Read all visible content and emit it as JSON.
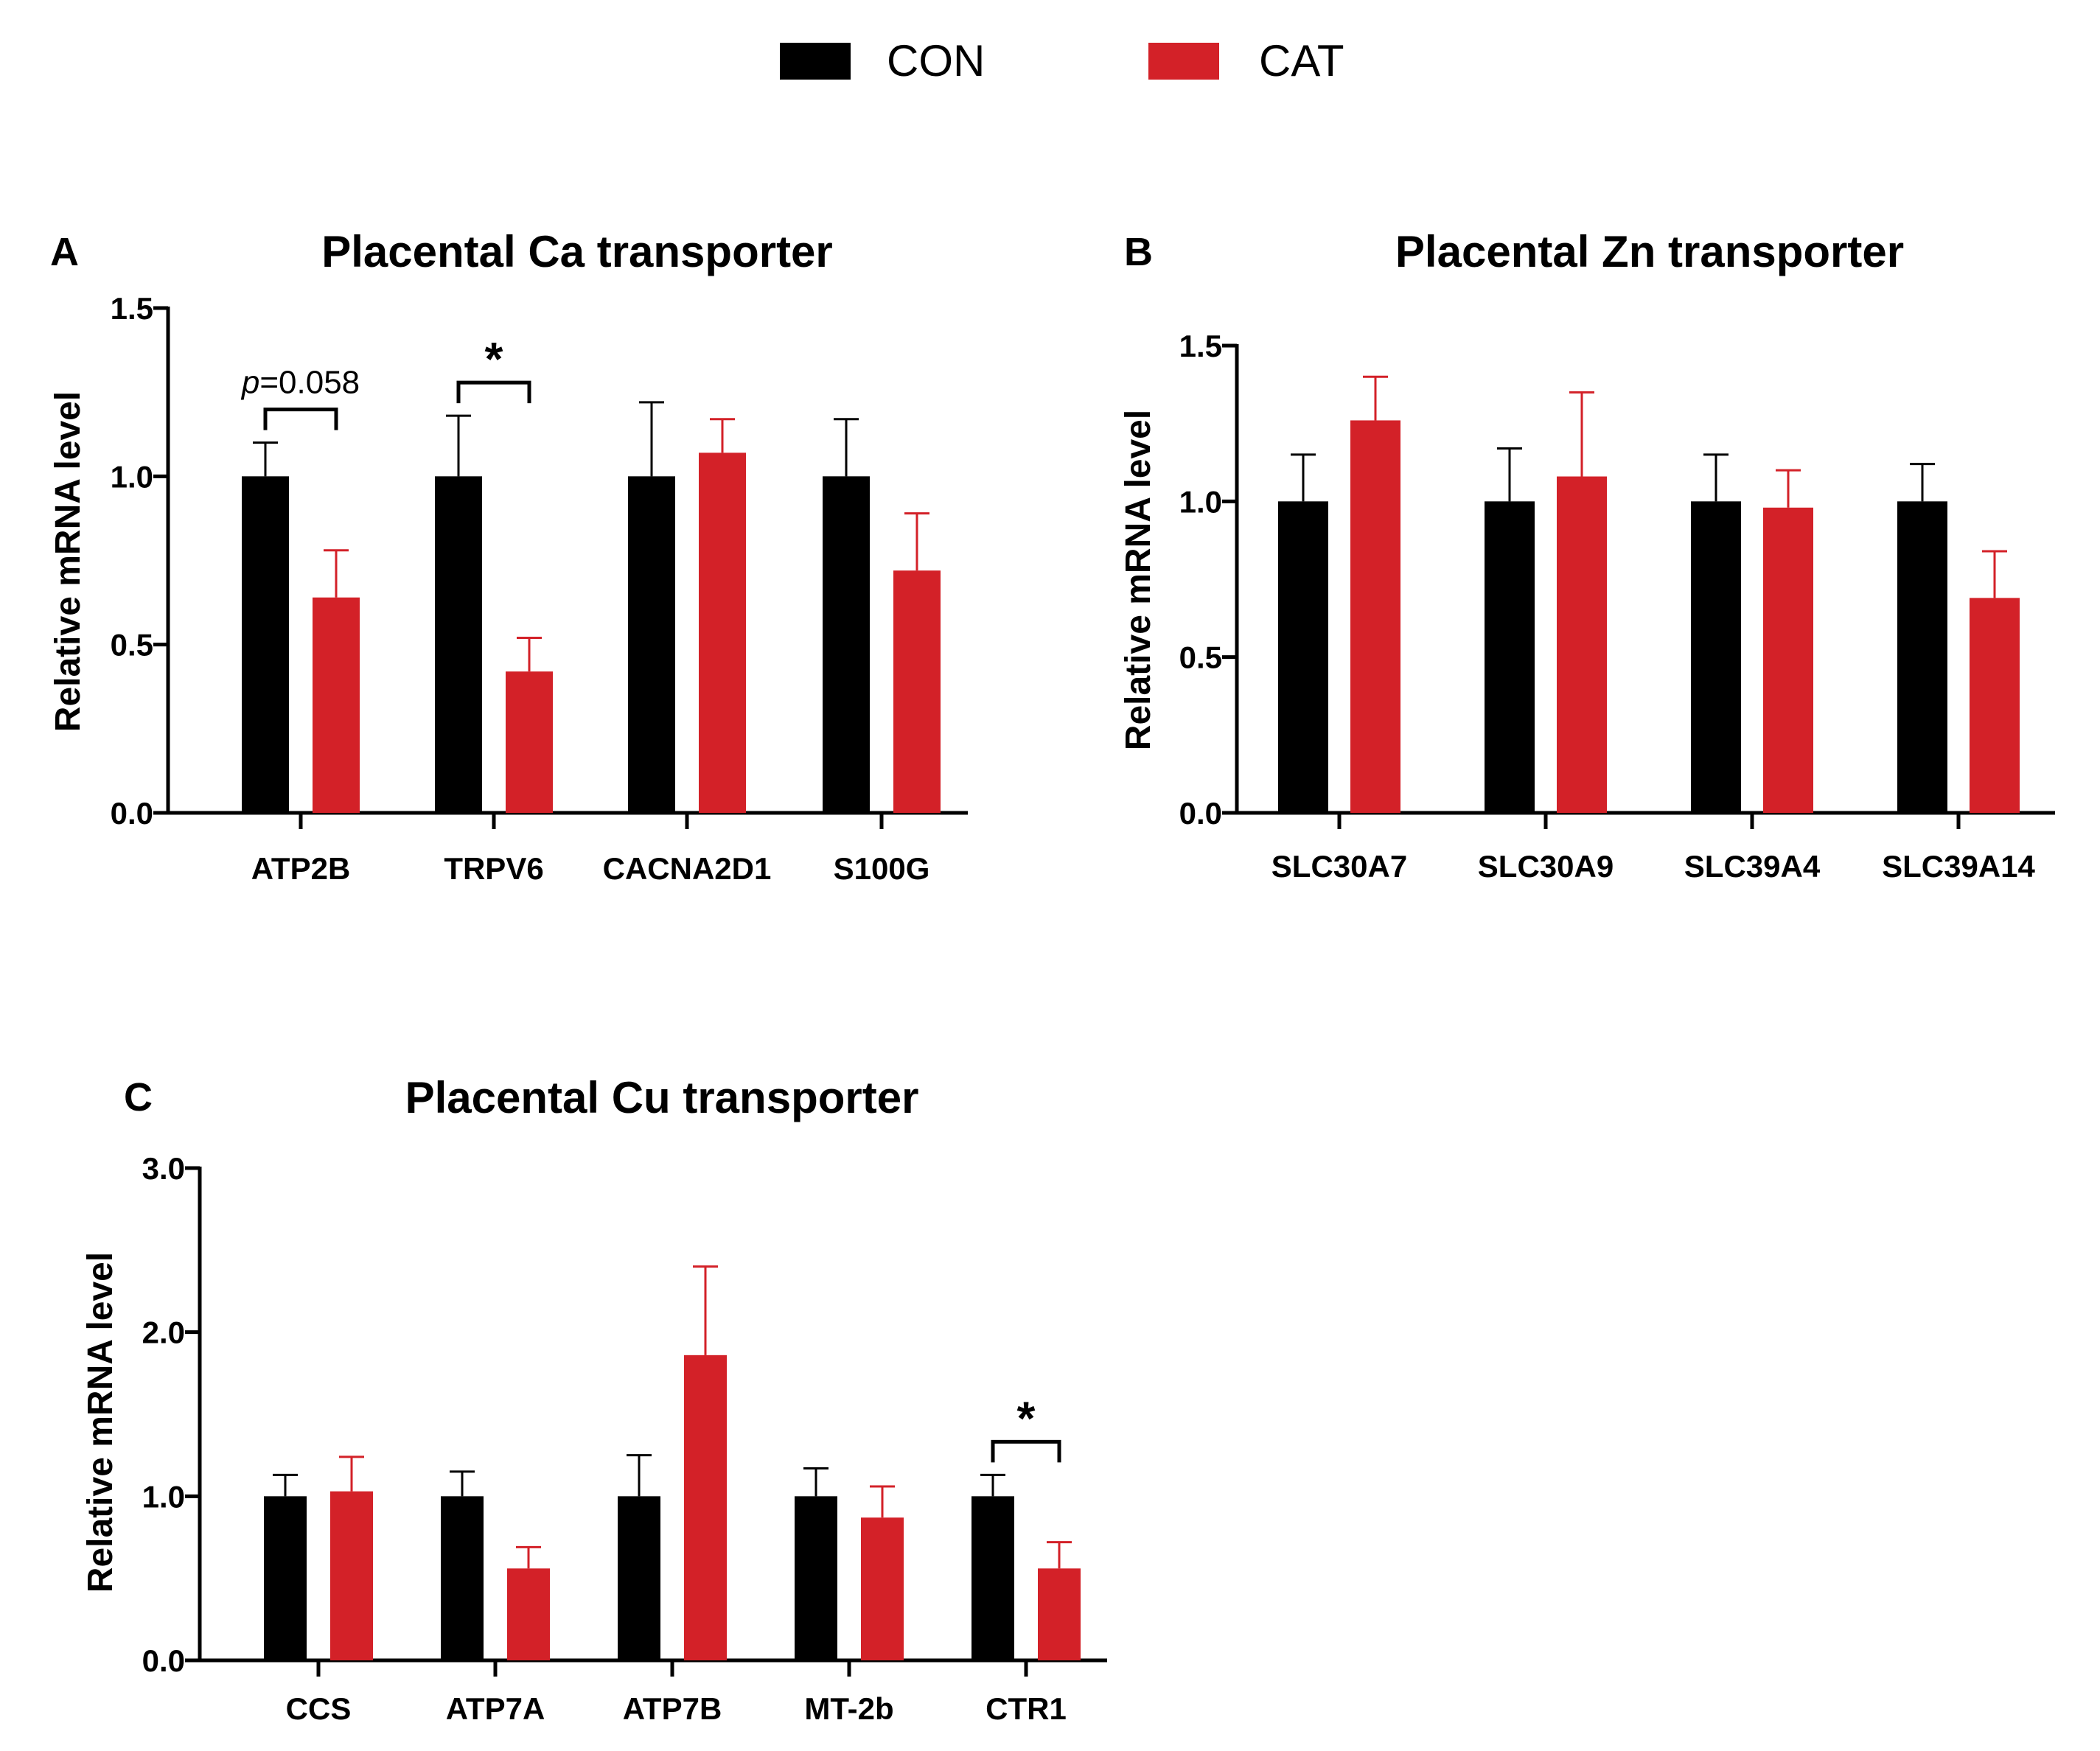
{
  "legend": {
    "items": [
      {
        "name": "CON",
        "color": "#000000"
      },
      {
        "name": "CAT",
        "color": "#d32128"
      }
    ]
  },
  "chart_data": [
    {
      "panel": "A",
      "type": "bar",
      "title": "Placental Ca transporter",
      "xlabel": "",
      "ylabel": "Relative mRNA level",
      "ylim": [
        0,
        1.5
      ],
      "yticks": [
        0.0,
        0.5,
        1.0,
        1.5
      ],
      "ytick_labels": [
        "0.0",
        "0.5",
        "1.0",
        "1.5"
      ],
      "categories": [
        "ATP2B",
        "TRPV6",
        "CACNA2D1",
        "S100G"
      ],
      "series": [
        {
          "name": "CON",
          "color": "#000000",
          "values": [
            1.0,
            1.0,
            1.0,
            1.0
          ],
          "errors": [
            0.1,
            0.18,
            0.22,
            0.17
          ]
        },
        {
          "name": "CAT",
          "color": "#d32128",
          "values": [
            0.64,
            0.42,
            1.07,
            0.72
          ],
          "errors": [
            0.14,
            0.1,
            0.1,
            0.17
          ]
        }
      ],
      "annotations": [
        {
          "category_index": 0,
          "text": "=0.058",
          "italic_prefix": "p",
          "kind": "p"
        },
        {
          "category_index": 1,
          "text": "*",
          "kind": "star"
        }
      ]
    },
    {
      "panel": "B",
      "type": "bar",
      "title": "Placental Zn transporter",
      "xlabel": "",
      "ylabel": "Relative mRNA level",
      "ylim": [
        0,
        1.5
      ],
      "yticks": [
        0.0,
        0.5,
        1.0,
        1.5
      ],
      "ytick_labels": [
        "0.0",
        "0.5",
        "1.0",
        "1.5"
      ],
      "categories": [
        "SLC30A7",
        "SLC30A9",
        "SLC39A4",
        "SLC39A14"
      ],
      "series": [
        {
          "name": "CON",
          "color": "#000000",
          "values": [
            1.0,
            1.0,
            1.0,
            1.0
          ],
          "errors": [
            0.15,
            0.17,
            0.15,
            0.12
          ]
        },
        {
          "name": "CAT",
          "color": "#d32128",
          "values": [
            1.26,
            1.08,
            0.98,
            0.69
          ],
          "errors": [
            0.14,
            0.27,
            0.12,
            0.15
          ]
        }
      ],
      "annotations": []
    },
    {
      "panel": "C",
      "type": "bar",
      "title": "Placental Cu transporter",
      "xlabel": "",
      "ylabel": "Relative mRNA level",
      "ylim": [
        0,
        3.0
      ],
      "yticks": [
        0.0,
        1.0,
        2.0,
        3.0
      ],
      "ytick_labels": [
        "0.0",
        "1.0",
        "2.0",
        "3.0"
      ],
      "categories": [
        "CCS",
        "ATP7A",
        "ATP7B",
        "MT-2b",
        "CTR1"
      ],
      "series": [
        {
          "name": "CON",
          "color": "#000000",
          "values": [
            1.0,
            1.0,
            1.0,
            1.0,
            1.0
          ],
          "errors": [
            0.13,
            0.15,
            0.25,
            0.17,
            0.13
          ]
        },
        {
          "name": "CAT",
          "color": "#d32128",
          "values": [
            1.03,
            0.56,
            1.86,
            0.87,
            0.56
          ],
          "errors": [
            0.21,
            0.13,
            0.54,
            0.19,
            0.16
          ]
        }
      ],
      "annotations": [
        {
          "category_index": 4,
          "text": "*",
          "kind": "star"
        }
      ]
    }
  ]
}
